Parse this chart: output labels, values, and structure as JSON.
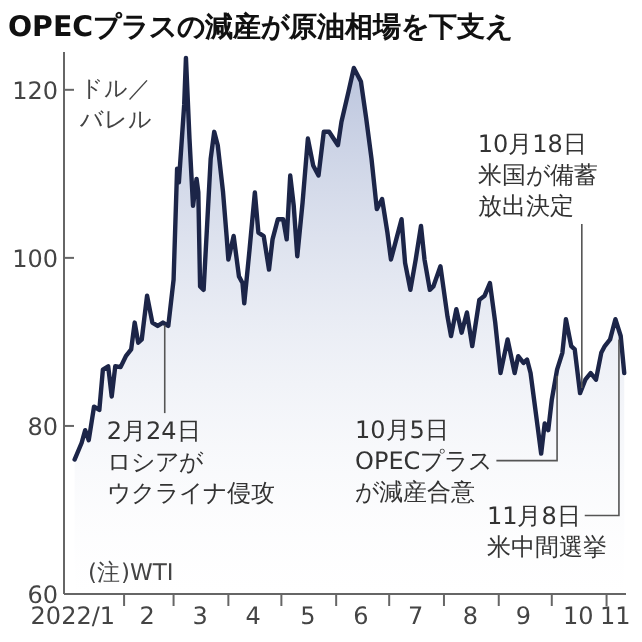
{
  "chart_data": {
    "type": "area",
    "title": "OPECプラスの減産が原油相場を下支え",
    "ylabel": "ドル／バレル",
    "x": [
      "2022-01-04",
      "2022-01-08",
      "2022-01-10",
      "2022-01-12",
      "2022-01-15",
      "2022-01-18",
      "2022-01-20",
      "2022-01-23",
      "2022-01-25",
      "2022-01-27",
      "2022-01-30",
      "2022-02-02",
      "2022-02-05",
      "2022-02-07",
      "2022-02-09",
      "2022-02-11",
      "2022-02-14",
      "2022-02-17",
      "2022-02-20",
      "2022-02-23",
      "2022-02-26",
      "2022-03-01",
      "2022-03-03",
      "2022-03-04",
      "2022-03-07",
      "2022-03-08",
      "2022-03-10",
      "2022-03-12",
      "2022-03-14",
      "2022-03-15",
      "2022-03-16",
      "2022-03-18",
      "2022-03-20",
      "2022-03-22",
      "2022-03-24",
      "2022-03-26",
      "2022-03-29",
      "2022-03-31",
      "2022-04-01",
      "2022-04-04",
      "2022-04-07",
      "2022-04-09",
      "2022-04-10",
      "2022-04-13",
      "2022-04-16",
      "2022-04-18",
      "2022-04-21",
      "2022-04-24",
      "2022-04-26",
      "2022-04-29",
      "2022-05-02",
      "2022-05-04",
      "2022-05-06",
      "2022-05-08",
      "2022-05-10",
      "2022-05-13",
      "2022-05-16",
      "2022-05-19",
      "2022-05-22",
      "2022-05-25",
      "2022-05-28",
      "2022-06-02",
      "2022-06-04",
      "2022-06-08",
      "2022-06-11",
      "2022-06-15",
      "2022-06-18",
      "2022-06-21",
      "2022-06-24",
      "2022-06-27",
      "2022-06-30",
      "2022-07-02",
      "2022-07-05",
      "2022-07-08",
      "2022-07-10",
      "2022-07-13",
      "2022-07-16",
      "2022-07-19",
      "2022-07-21",
      "2022-07-24",
      "2022-07-26",
      "2022-07-30",
      "2022-08-03",
      "2022-08-05",
      "2022-08-08",
      "2022-08-11",
      "2022-08-14",
      "2022-08-17",
      "2022-08-21",
      "2022-08-24",
      "2022-08-27",
      "2022-08-30",
      "2022-09-02",
      "2022-09-06",
      "2022-09-10",
      "2022-09-12",
      "2022-09-15",
      "2022-09-17",
      "2022-09-19",
      "2022-09-21",
      "2022-09-23",
      "2022-09-25",
      "2022-09-27",
      "2022-09-29",
      "2022-10-01",
      "2022-10-04",
      "2022-10-07",
      "2022-10-09",
      "2022-10-12",
      "2022-10-14",
      "2022-10-17",
      "2022-10-20",
      "2022-10-23",
      "2022-10-26",
      "2022-10-29",
      "2022-10-31",
      "2022-11-03",
      "2022-11-06",
      "2022-11-09",
      "2022-11-11"
    ],
    "series": [
      {
        "color": "#1c2548",
        "values": [
          76,
          78,
          79.5,
          78.3,
          82.3,
          81.9,
          86.7,
          87.1,
          83.5,
          87.1,
          87,
          88.3,
          89.1,
          92.3,
          89.9,
          90.3,
          95.5,
          92.3,
          91.9,
          92.3,
          91.9,
          97.4,
          110.6,
          109,
          118.2,
          123.8,
          114.2,
          106.2,
          109.4,
          107.8,
          96.6,
          96.2,
          104,
          111.8,
          115,
          113.4,
          107.8,
          102.6,
          99.8,
          102.6,
          97.8,
          97,
          94.6,
          101,
          107.8,
          103,
          102.6,
          98.6,
          102.2,
          104.6,
          104.6,
          102.2,
          109.8,
          106.2,
          100.2,
          106.6,
          114.2,
          111,
          109.8,
          115,
          115,
          113.4,
          116.2,
          119.8,
          122.6,
          121,
          116.6,
          111.8,
          105.8,
          107,
          103,
          99.8,
          102.2,
          104.6,
          99.4,
          96.2,
          99.8,
          103.8,
          99.8,
          96.2,
          96.6,
          99,
          93,
          90.7,
          93.9,
          91.1,
          93.5,
          89.5,
          95,
          95.5,
          97,
          92.3,
          86.3,
          90.3,
          86.3,
          88.3,
          87.5,
          87.9,
          86.3,
          83.1,
          79.9,
          76.7,
          80.3,
          79.5,
          83.1,
          86.7,
          88.7,
          92.7,
          89.5,
          89.1,
          83.9,
          85.5,
          86.3,
          85.5,
          88.7,
          89.5,
          90.3,
          92.7,
          90.7,
          86.3
        ]
      }
    ],
    "xlim": [
      "2021-12-29",
      "2022-11-12"
    ],
    "xticks": [
      {
        "value": "2022-01-03",
        "label": "2022/1"
      },
      {
        "value": "2022-02-01",
        "label": null
      },
      {
        "value": "2022-02-14",
        "label": "2"
      },
      {
        "value": "2022-03-01",
        "label": null
      },
      {
        "value": "2022-03-16",
        "label": "3"
      },
      {
        "value": "2022-04-01",
        "label": null
      },
      {
        "value": "2022-04-15",
        "label": "4"
      },
      {
        "value": "2022-05-01",
        "label": null
      },
      {
        "value": "2022-05-16",
        "label": "5"
      },
      {
        "value": "2022-06-01",
        "label": null
      },
      {
        "value": "2022-06-15",
        "label": "6"
      },
      {
        "value": "2022-07-01",
        "label": null
      },
      {
        "value": "2022-07-16",
        "label": "7"
      },
      {
        "value": "2022-08-01",
        "label": null
      },
      {
        "value": "2022-08-16",
        "label": "8"
      },
      {
        "value": "2022-09-01",
        "label": null
      },
      {
        "value": "2022-09-15",
        "label": "9"
      },
      {
        "value": "2022-10-01",
        "label": null
      },
      {
        "value": "2022-10-16",
        "label": "10"
      },
      {
        "value": "2022-11-01",
        "label": null
      },
      {
        "value": "2022-11-06",
        "label": "11"
      }
    ],
    "ylim": [
      60,
      124.5
    ],
    "yticks": [
      60,
      80,
      100,
      120
    ],
    "annotations": [
      {
        "text": "2月24日ロシアがウクライナ侵攻",
        "x": "2022-02-24",
        "y": 92
      },
      {
        "text": "10月5日OPECプラスが減産合意",
        "x": "2022-10-04",
        "y": 86.7
      },
      {
        "text": "10月18日米国が備蓄放出決定",
        "x": "2022-10-18",
        "y": 84.5
      },
      {
        "text": "11月8日米中間選挙",
        "x": "2022-11-08",
        "y": 91
      },
      "(注)WTI"
    ]
  }
}
